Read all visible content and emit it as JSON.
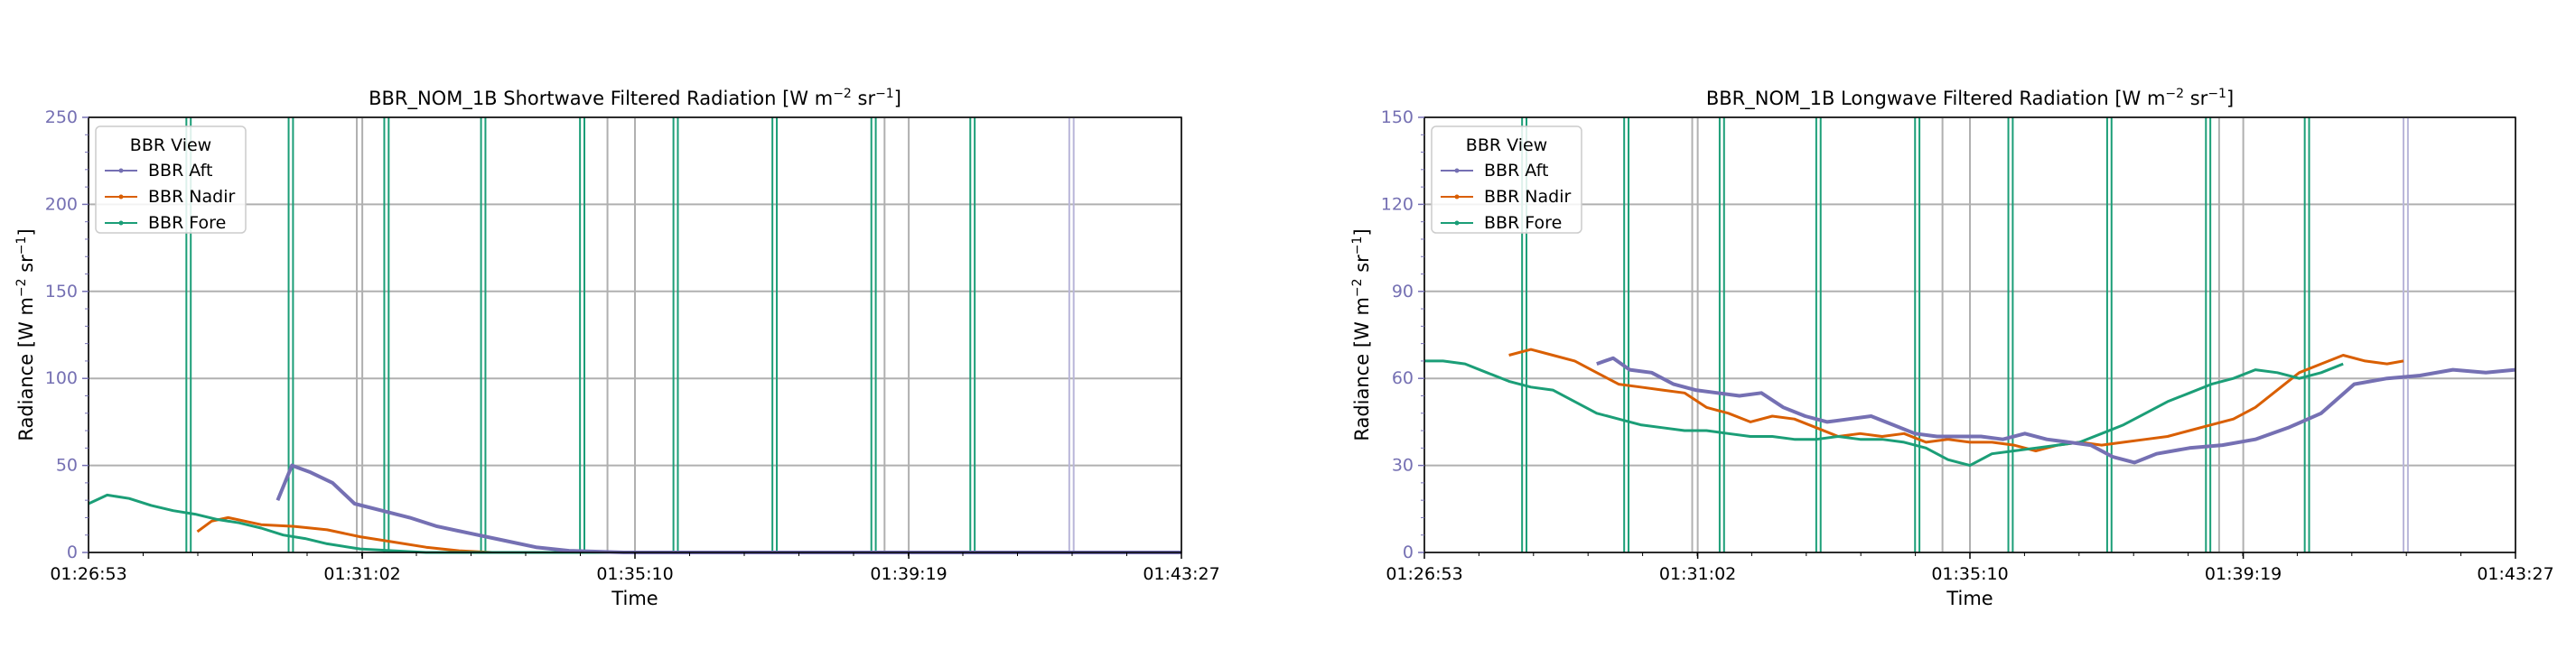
{
  "colors": {
    "aft": "#7570b3",
    "nadir": "#d95f02",
    "fore": "#1b9e77",
    "grid": "#b0b0b0",
    "ytick": "#7570b3",
    "axis": "#000000"
  },
  "legend": {
    "title": "BBR View",
    "entries": [
      "BBR Aft",
      "BBR Nadir",
      "BBR Fore"
    ]
  },
  "chart_data": [
    {
      "type": "line",
      "title_main": "BBR_NOM_1B Shortwave Filtered Radiation [W m",
      "title_sup1": "−2",
      "title_mid": " sr",
      "title_sup2": "−1",
      "title_end": "]",
      "xlabel": "Time",
      "ylabel_main": "Radiance [W m",
      "ylabel_sup1": "−2",
      "ylabel_mid": " sr",
      "ylabel_sup2": "−1",
      "ylabel_end": "]",
      "xlim": [
        "01:26:53",
        "01:43:27"
      ],
      "xticks": [
        "01:26:53",
        "01:31:02",
        "01:35:10",
        "01:39:19",
        "01:43:27"
      ],
      "ylim": [
        0,
        250
      ],
      "yticks": [
        "0",
        "50",
        "100",
        "150",
        "200",
        "250"
      ],
      "grid": true,
      "legend_position": "top-left",
      "series": [
        {
          "name": "BBR Aft",
          "x": [
            "01:29:45",
            "01:29:58",
            "01:30:15",
            "01:30:35",
            "01:30:55",
            "01:31:20",
            "01:31:45",
            "01:32:10",
            "01:32:40",
            "01:33:10",
            "01:33:40",
            "01:34:10",
            "01:35:00",
            "01:36:00",
            "01:38:00",
            "01:40:00",
            "01:41:00",
            "01:43:27"
          ],
          "y": [
            30,
            50,
            46,
            40,
            28,
            24,
            20,
            15,
            11,
            7,
            3,
            1,
            0,
            0,
            0,
            0,
            0,
            0
          ]
        },
        {
          "name": "BBR Nadir",
          "x": [
            "01:28:32",
            "01:28:45",
            "01:29:00",
            "01:29:30",
            "01:30:00",
            "01:30:30",
            "01:31:00",
            "01:31:30",
            "01:32:00",
            "01:32:30",
            "01:33:00",
            "01:34:00",
            "01:36:00",
            "01:38:00",
            "01:40:00",
            "01:41:35"
          ],
          "y": [
            12,
            18,
            20,
            16,
            15,
            13,
            9,
            6,
            3,
            1,
            0,
            0,
            0,
            0,
            0,
            0
          ]
        },
        {
          "name": "BBR Fore",
          "x": [
            "01:26:53",
            "01:27:10",
            "01:27:30",
            "01:27:50",
            "01:28:10",
            "01:28:30",
            "01:28:50",
            "01:29:10",
            "01:29:30",
            "01:29:50",
            "01:30:10",
            "01:30:30",
            "01:31:00",
            "01:31:30",
            "01:32:00",
            "01:34:00",
            "01:36:00",
            "01:38:00",
            "01:39:30",
            "01:40:50"
          ],
          "y": [
            28,
            33,
            31,
            27,
            24,
            22,
            19,
            17,
            14,
            10,
            8,
            5,
            2,
            1,
            0,
            0,
            0,
            0,
            0,
            0
          ]
        }
      ]
    },
    {
      "type": "line",
      "title_main": "BBR_NOM_1B Longwave Filtered Radiation [W m",
      "title_sup1": "−2",
      "title_mid": " sr",
      "title_sup2": "−1",
      "title_end": "]",
      "xlabel": "Time",
      "ylabel_main": "Radiance [W m",
      "ylabel_sup1": "−2",
      "ylabel_mid": " sr",
      "ylabel_sup2": "−1",
      "ylabel_end": "]",
      "xlim": [
        "01:26:53",
        "01:43:27"
      ],
      "xticks": [
        "01:26:53",
        "01:31:02",
        "01:35:10",
        "01:39:19",
        "01:43:27"
      ],
      "ylim": [
        0,
        150
      ],
      "yticks": [
        "0",
        "30",
        "60",
        "90",
        "120",
        "150"
      ],
      "grid": true,
      "legend_position": "top-left",
      "series": [
        {
          "name": "BBR Aft",
          "x": [
            "01:29:30",
            "01:29:45",
            "01:30:00",
            "01:30:20",
            "01:30:40",
            "01:31:00",
            "01:31:20",
            "01:31:40",
            "01:32:00",
            "01:32:20",
            "01:32:40",
            "01:33:00",
            "01:33:20",
            "01:33:40",
            "01:34:00",
            "01:34:20",
            "01:34:40",
            "01:35:00",
            "01:35:20",
            "01:35:40",
            "01:36:00",
            "01:36:20",
            "01:36:40",
            "01:37:00",
            "01:37:20",
            "01:37:40",
            "01:38:00",
            "01:38:30",
            "01:39:00",
            "01:39:30",
            "01:40:00",
            "01:40:30",
            "01:41:00",
            "01:41:30",
            "01:42:00",
            "01:42:30",
            "01:43:00",
            "01:43:27"
          ],
          "y": [
            65,
            67,
            63,
            62,
            58,
            56,
            55,
            54,
            55,
            50,
            47,
            45,
            46,
            47,
            44,
            41,
            40,
            40,
            40,
            39,
            41,
            39,
            38,
            37,
            33,
            31,
            34,
            36,
            37,
            39,
            43,
            48,
            58,
            60,
            61,
            63,
            62,
            63
          ]
        },
        {
          "name": "BBR Nadir",
          "x": [
            "01:28:10",
            "01:28:30",
            "01:28:50",
            "01:29:10",
            "01:29:30",
            "01:29:50",
            "01:30:10",
            "01:30:30",
            "01:30:50",
            "01:31:10",
            "01:31:30",
            "01:31:50",
            "01:32:10",
            "01:32:30",
            "01:32:50",
            "01:33:10",
            "01:33:30",
            "01:33:50",
            "01:34:10",
            "01:34:30",
            "01:34:50",
            "01:35:10",
            "01:35:30",
            "01:35:50",
            "01:36:10",
            "01:36:30",
            "01:36:50",
            "01:37:10",
            "01:37:30",
            "01:37:50",
            "01:38:10",
            "01:38:30",
            "01:38:50",
            "01:39:10",
            "01:39:30",
            "01:39:50",
            "01:40:10",
            "01:40:30",
            "01:40:50",
            "01:41:10",
            "01:41:30",
            "01:41:45"
          ],
          "y": [
            68,
            70,
            68,
            66,
            62,
            58,
            57,
            56,
            55,
            50,
            48,
            45,
            47,
            46,
            43,
            40,
            41,
            40,
            41,
            38,
            39,
            38,
            38,
            37,
            35,
            37,
            38,
            37,
            38,
            39,
            40,
            42,
            44,
            46,
            50,
            56,
            62,
            65,
            68,
            66,
            65,
            66
          ]
        },
        {
          "name": "BBR Fore",
          "x": [
            "01:26:53",
            "01:27:10",
            "01:27:30",
            "01:27:50",
            "01:28:10",
            "01:28:30",
            "01:28:50",
            "01:29:10",
            "01:29:30",
            "01:29:50",
            "01:30:10",
            "01:30:30",
            "01:30:50",
            "01:31:10",
            "01:31:30",
            "01:31:50",
            "01:32:10",
            "01:32:30",
            "01:32:50",
            "01:33:10",
            "01:33:30",
            "01:33:50",
            "01:34:10",
            "01:34:30",
            "01:34:50",
            "01:35:10",
            "01:35:30",
            "01:35:50",
            "01:36:10",
            "01:36:30",
            "01:36:50",
            "01:37:10",
            "01:37:30",
            "01:37:50",
            "01:38:10",
            "01:38:30",
            "01:38:50",
            "01:39:10",
            "01:39:30",
            "01:39:50",
            "01:40:10",
            "01:40:30",
            "01:40:50"
          ],
          "y": [
            66,
            66,
            65,
            62,
            59,
            57,
            56,
            52,
            48,
            46,
            44,
            43,
            42,
            42,
            41,
            40,
            40,
            39,
            39,
            40,
            39,
            39,
            38,
            36,
            32,
            30,
            34,
            35,
            36,
            37,
            38,
            41,
            44,
            48,
            52,
            55,
            58,
            60,
            63,
            62,
            60,
            62,
            65
          ]
        }
      ]
    }
  ]
}
